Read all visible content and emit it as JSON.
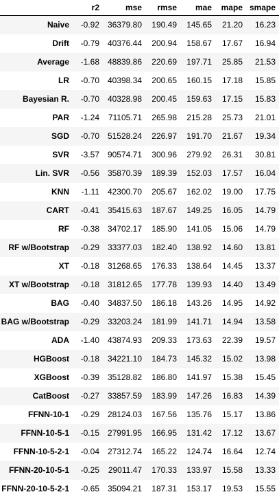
{
  "table": {
    "index_header": "",
    "columns": [
      "r2",
      "mse",
      "rmse",
      "mae",
      "mape",
      "smape"
    ],
    "rows": [
      {
        "label": "Naive",
        "values": [
          "-0.92",
          "36379.80",
          "190.49",
          "145.65",
          "21.20",
          "16.23"
        ]
      },
      {
        "label": "Drift",
        "values": [
          "-0.79",
          "40376.44",
          "200.94",
          "158.67",
          "17.67",
          "16.94"
        ]
      },
      {
        "label": "Average",
        "values": [
          "-1.68",
          "48839.86",
          "220.69",
          "197.71",
          "25.85",
          "21.53"
        ]
      },
      {
        "label": "LR",
        "values": [
          "-0.70",
          "40398.34",
          "200.65",
          "160.15",
          "17.18",
          "15.85"
        ]
      },
      {
        "label": "Bayesian R.",
        "values": [
          "-0.70",
          "40328.98",
          "200.45",
          "159.63",
          "17.15",
          "15.83"
        ]
      },
      {
        "label": "PAR",
        "values": [
          "-1.24",
          "71105.71",
          "265.98",
          "215.28",
          "25.73",
          "21.01"
        ]
      },
      {
        "label": "SGD",
        "values": [
          "-0.70",
          "51528.24",
          "226.97",
          "191.70",
          "21.67",
          "19.34"
        ]
      },
      {
        "label": "SVR",
        "values": [
          "-3.57",
          "90574.71",
          "300.96",
          "279.92",
          "26.31",
          "30.81"
        ]
      },
      {
        "label": "Lin. SVR",
        "values": [
          "-0.56",
          "35870.39",
          "189.39",
          "152.03",
          "17.57",
          "16.04"
        ]
      },
      {
        "label": "KNN",
        "values": [
          "-1.11",
          "42300.70",
          "205.67",
          "162.02",
          "19.00",
          "17.75"
        ]
      },
      {
        "label": "CART",
        "values": [
          "-0.41",
          "35415.63",
          "187.67",
          "149.25",
          "16.05",
          "14.79"
        ]
      },
      {
        "label": "RF",
        "values": [
          "-0.38",
          "34702.17",
          "185.90",
          "141.05",
          "15.06",
          "14.79"
        ]
      },
      {
        "label": "RF w/Bootstrap",
        "values": [
          "-0.29",
          "33377.03",
          "182.40",
          "138.92",
          "14.60",
          "13.81"
        ]
      },
      {
        "label": "XT",
        "values": [
          "-0.18",
          "31268.65",
          "176.33",
          "138.64",
          "14.45",
          "13.37"
        ]
      },
      {
        "label": "XT w/Bootstrap",
        "values": [
          "-0.18",
          "31812.65",
          "177.78",
          "139.93",
          "14.40",
          "13.49"
        ]
      },
      {
        "label": "BAG",
        "values": [
          "-0.40",
          "34837.50",
          "186.18",
          "143.26",
          "14.95",
          "14.92"
        ]
      },
      {
        "label": "BAG w/Bootstrap",
        "values": [
          "-0.29",
          "33203.24",
          "181.99",
          "141.71",
          "14.94",
          "13.58"
        ]
      },
      {
        "label": "ADA",
        "values": [
          "-1.40",
          "43874.93",
          "209.33",
          "173.63",
          "22.39",
          "19.57"
        ]
      },
      {
        "label": "HGBoost",
        "values": [
          "-0.18",
          "34221.10",
          "184.73",
          "145.32",
          "15.02",
          "13.98"
        ]
      },
      {
        "label": "XGBoost",
        "values": [
          "-0.39",
          "35128.82",
          "186.80",
          "141.97",
          "15.38",
          "15.45"
        ]
      },
      {
        "label": "CatBoost",
        "values": [
          "-0.27",
          "33857.59",
          "183.99",
          "147.26",
          "16.83",
          "14.39"
        ]
      },
      {
        "label": "FFNN-10-1",
        "values": [
          "-0.29",
          "28124.03",
          "167.56",
          "135.76",
          "15.17",
          "13.86"
        ]
      },
      {
        "label": "FFNN-10-5-1",
        "values": [
          "-0.15",
          "27991.95",
          "166.95",
          "131.42",
          "17.12",
          "13.67"
        ]
      },
      {
        "label": "FFNN-10-5-2-1",
        "values": [
          "-0.04",
          "27312.74",
          "165.22",
          "124.74",
          "16.64",
          "12.74"
        ]
      },
      {
        "label": "FFNN-20-10-5-1",
        "values": [
          "-0.25",
          "29011.47",
          "170.33",
          "133.97",
          "15.58",
          "13.33"
        ]
      },
      {
        "label": "FFNN-20-10-5-2-1",
        "values": [
          "-0.65",
          "35094.21",
          "187.31",
          "153.17",
          "19.53",
          "15.55"
        ]
      }
    ]
  },
  "colors": {
    "stripe": "#f5f5f5",
    "background": "#ffffff",
    "text": "#000000"
  }
}
